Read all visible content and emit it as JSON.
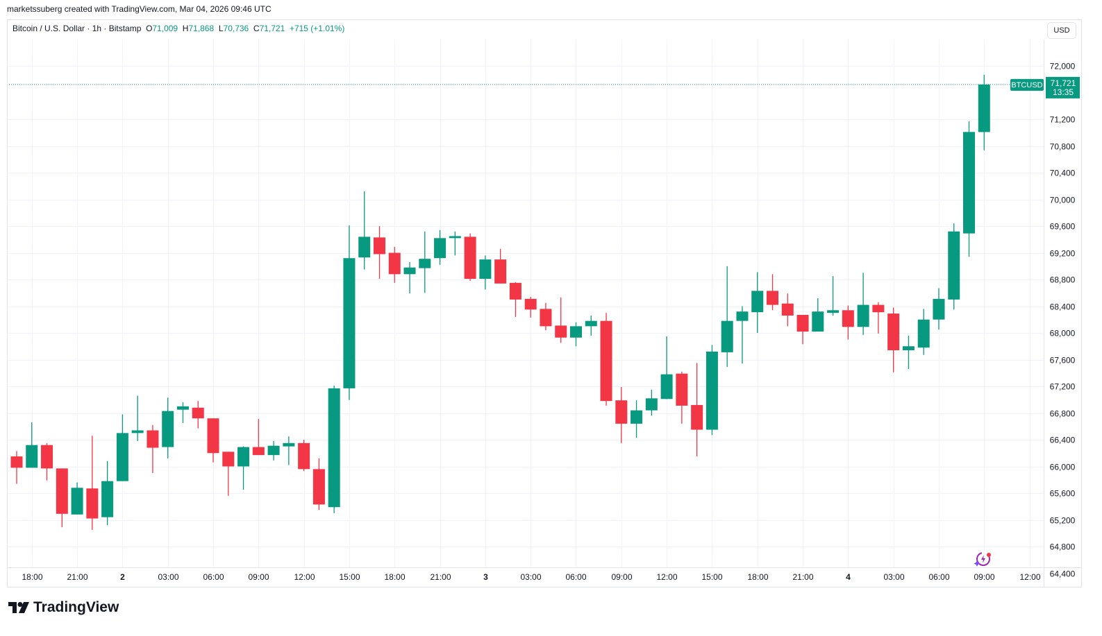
{
  "attribution": "marketssuberg created with TradingView.com, Mar 04, 2026 09:46 UTC",
  "legend": {
    "symbol_desc": "Bitcoin / U.S. Dollar · 1h · Bitstamp",
    "o_label": "O",
    "o_value": "71,009",
    "h_label": "H",
    "h_value": "71,868",
    "l_label": "L",
    "l_value": "70,736",
    "c_label": "C",
    "c_value": "71,721",
    "change": "+715 (+1.01%)"
  },
  "currency_button": "USD",
  "price_tag": {
    "symbol": "BTCUSD",
    "price": "71,721",
    "countdown": "13:35"
  },
  "logo_text": "TradingView",
  "colors": {
    "up": "#089981",
    "down": "#F23645",
    "grid": "#f0f3fa",
    "text": "#131722"
  },
  "chart_data": {
    "type": "candlestick",
    "title": "Bitcoin / U.S. Dollar · 1h · Bitstamp",
    "interval": "1h",
    "ylim": [
      64400,
      72000
    ],
    "y_ticks": [
      64400,
      64800,
      65200,
      65600,
      66000,
      66400,
      66800,
      67200,
      67600,
      68000,
      68400,
      68800,
      69200,
      69600,
      70000,
      70400,
      70800,
      71200,
      72000
    ],
    "x_ticks": [
      {
        "time": "2026-03-01 18:00",
        "label": "18:00"
      },
      {
        "time": "2026-03-01 21:00",
        "label": "21:00"
      },
      {
        "time": "2026-03-02 00:00",
        "label": "2"
      },
      {
        "time": "2026-03-02 03:00",
        "label": "03:00"
      },
      {
        "time": "2026-03-02 06:00",
        "label": "06:00"
      },
      {
        "time": "2026-03-02 09:00",
        "label": "09:00"
      },
      {
        "time": "2026-03-02 12:00",
        "label": "12:00"
      },
      {
        "time": "2026-03-02 15:00",
        "label": "15:00"
      },
      {
        "time": "2026-03-02 18:00",
        "label": "18:00"
      },
      {
        "time": "2026-03-02 21:00",
        "label": "21:00"
      },
      {
        "time": "2026-03-03 00:00",
        "label": "3"
      },
      {
        "time": "2026-03-03 03:00",
        "label": "03:00"
      },
      {
        "time": "2026-03-03 06:00",
        "label": "06:00"
      },
      {
        "time": "2026-03-03 09:00",
        "label": "09:00"
      },
      {
        "time": "2026-03-03 12:00",
        "label": "12:00"
      },
      {
        "time": "2026-03-03 15:00",
        "label": "15:00"
      },
      {
        "time": "2026-03-03 18:00",
        "label": "18:00"
      },
      {
        "time": "2026-03-03 21:00",
        "label": "21:00"
      },
      {
        "time": "2026-03-04 00:00",
        "label": "4"
      },
      {
        "time": "2026-03-04 03:00",
        "label": "03:00"
      },
      {
        "time": "2026-03-04 06:00",
        "label": "06:00"
      },
      {
        "time": "2026-03-04 09:00",
        "label": "09:00"
      },
      {
        "time": "2026-03-04 12:00",
        "label": "12:00"
      }
    ],
    "last_price": 71721,
    "columns": [
      "time",
      "open",
      "high",
      "low",
      "close"
    ],
    "candles": [
      [
        "2026-03-01 17:00",
        66150,
        66230,
        65740,
        65980
      ],
      [
        "2026-03-01 18:00",
        65980,
        66660,
        65980,
        66320
      ],
      [
        "2026-03-01 19:00",
        66320,
        66350,
        65790,
        65970
      ],
      [
        "2026-03-01 20:00",
        65970,
        65970,
        65090,
        65290
      ],
      [
        "2026-03-01 21:00",
        65280,
        65760,
        65280,
        65680
      ],
      [
        "2026-03-01 22:00",
        65670,
        66460,
        65050,
        65220
      ],
      [
        "2026-03-01 23:00",
        65240,
        66080,
        65120,
        65780
      ],
      [
        "2026-03-02 00:00",
        65780,
        66780,
        65780,
        66500
      ],
      [
        "2026-03-02 01:00",
        66500,
        67060,
        66380,
        66540
      ],
      [
        "2026-03-02 02:00",
        66540,
        66620,
        65900,
        66280
      ],
      [
        "2026-03-02 03:00",
        66290,
        67030,
        66120,
        66830
      ],
      [
        "2026-03-02 04:00",
        66850,
        66960,
        66650,
        66900
      ],
      [
        "2026-03-02 05:00",
        66880,
        66980,
        66570,
        66720
      ],
      [
        "2026-03-02 06:00",
        66720,
        66720,
        66060,
        66200
      ],
      [
        "2026-03-02 07:00",
        66220,
        66220,
        65560,
        66000
      ],
      [
        "2026-03-02 08:00",
        66000,
        66300,
        65650,
        66290
      ],
      [
        "2026-03-02 09:00",
        66290,
        66710,
        66170,
        66170
      ],
      [
        "2026-03-02 10:00",
        66170,
        66380,
        66090,
        66310
      ],
      [
        "2026-03-02 11:00",
        66300,
        66450,
        66020,
        66350
      ],
      [
        "2026-03-02 12:00",
        66350,
        66400,
        65930,
        65960
      ],
      [
        "2026-03-02 13:00",
        65960,
        66120,
        65350,
        65430
      ],
      [
        "2026-03-02 14:00",
        65390,
        67210,
        65300,
        67170
      ],
      [
        "2026-03-02 15:00",
        67170,
        69610,
        66995,
        69120
      ],
      [
        "2026-03-02 16:00",
        69130,
        70120,
        68950,
        69440
      ],
      [
        "2026-03-02 17:00",
        69430,
        69600,
        68810,
        69180
      ],
      [
        "2026-03-02 18:00",
        69200,
        69290,
        68750,
        68880
      ],
      [
        "2026-03-02 19:00",
        68880,
        69060,
        68590,
        68980
      ],
      [
        "2026-03-02 20:00",
        68970,
        69520,
        68600,
        69110
      ],
      [
        "2026-03-02 21:00",
        69120,
        69540,
        69020,
        69420
      ],
      [
        "2026-03-02 22:00",
        69420,
        69520,
        69160,
        69450
      ],
      [
        "2026-03-02 23:00",
        69440,
        69490,
        68780,
        68810
      ],
      [
        "2026-03-03 00:00",
        68810,
        69160,
        68650,
        69100
      ],
      [
        "2026-03-03 01:00",
        69100,
        69260,
        68740,
        68740
      ],
      [
        "2026-03-03 02:00",
        68750,
        68760,
        68240,
        68500
      ],
      [
        "2026-03-03 03:00",
        68510,
        68540,
        68230,
        68350
      ],
      [
        "2026-03-03 04:00",
        68360,
        68450,
        68040,
        68100
      ],
      [
        "2026-03-03 05:00",
        68110,
        68530,
        67850,
        67930
      ],
      [
        "2026-03-03 06:00",
        67930,
        68160,
        67800,
        68100
      ],
      [
        "2026-03-03 07:00",
        68100,
        68260,
        67960,
        68180
      ],
      [
        "2026-03-03 08:00",
        68180,
        68300,
        66910,
        66980
      ],
      [
        "2026-03-03 09:00",
        66990,
        67190,
        66350,
        66640
      ],
      [
        "2026-03-03 10:00",
        66640,
        66990,
        66430,
        66840
      ],
      [
        "2026-03-03 11:00",
        66840,
        67150,
        66760,
        67020
      ],
      [
        "2026-03-03 12:00",
        67010,
        67950,
        67010,
        67380
      ],
      [
        "2026-03-03 13:00",
        67390,
        67420,
        66640,
        66910
      ],
      [
        "2026-03-03 14:00",
        66920,
        67550,
        66150,
        66550
      ],
      [
        "2026-03-03 15:00",
        66550,
        67820,
        66470,
        67720
      ],
      [
        "2026-03-03 16:00",
        67710,
        69000,
        67490,
        68180
      ],
      [
        "2026-03-03 17:00",
        68180,
        68400,
        67540,
        68320
      ],
      [
        "2026-03-03 18:00",
        68310,
        68910,
        68000,
        68630
      ],
      [
        "2026-03-03 19:00",
        68630,
        68880,
        68340,
        68420
      ],
      [
        "2026-03-03 20:00",
        68440,
        68590,
        68100,
        68260
      ],
      [
        "2026-03-03 21:00",
        68270,
        68270,
        67830,
        68020
      ],
      [
        "2026-03-03 22:00",
        68020,
        68520,
        68020,
        68320
      ],
      [
        "2026-03-03 23:00",
        68300,
        68850,
        68260,
        68340
      ],
      [
        "2026-03-04 00:00",
        68340,
        68410,
        67900,
        68090
      ],
      [
        "2026-03-04 01:00",
        68090,
        68900,
        67970,
        68420
      ],
      [
        "2026-03-04 02:00",
        68420,
        68460,
        67990,
        68310
      ],
      [
        "2026-03-04 03:00",
        68290,
        68380,
        67410,
        67740
      ],
      [
        "2026-03-04 04:00",
        67740,
        67960,
        67460,
        67800
      ],
      [
        "2026-03-04 05:00",
        67780,
        68360,
        67670,
        68200
      ],
      [
        "2026-03-04 06:00",
        68200,
        68670,
        68050,
        68510
      ],
      [
        "2026-03-04 07:00",
        68500,
        69640,
        68350,
        69520
      ],
      [
        "2026-03-04 08:00",
        69490,
        71170,
        69140,
        71010
      ],
      [
        "2026-03-04 09:00",
        71009,
        71868,
        70736,
        71721
      ]
    ]
  }
}
